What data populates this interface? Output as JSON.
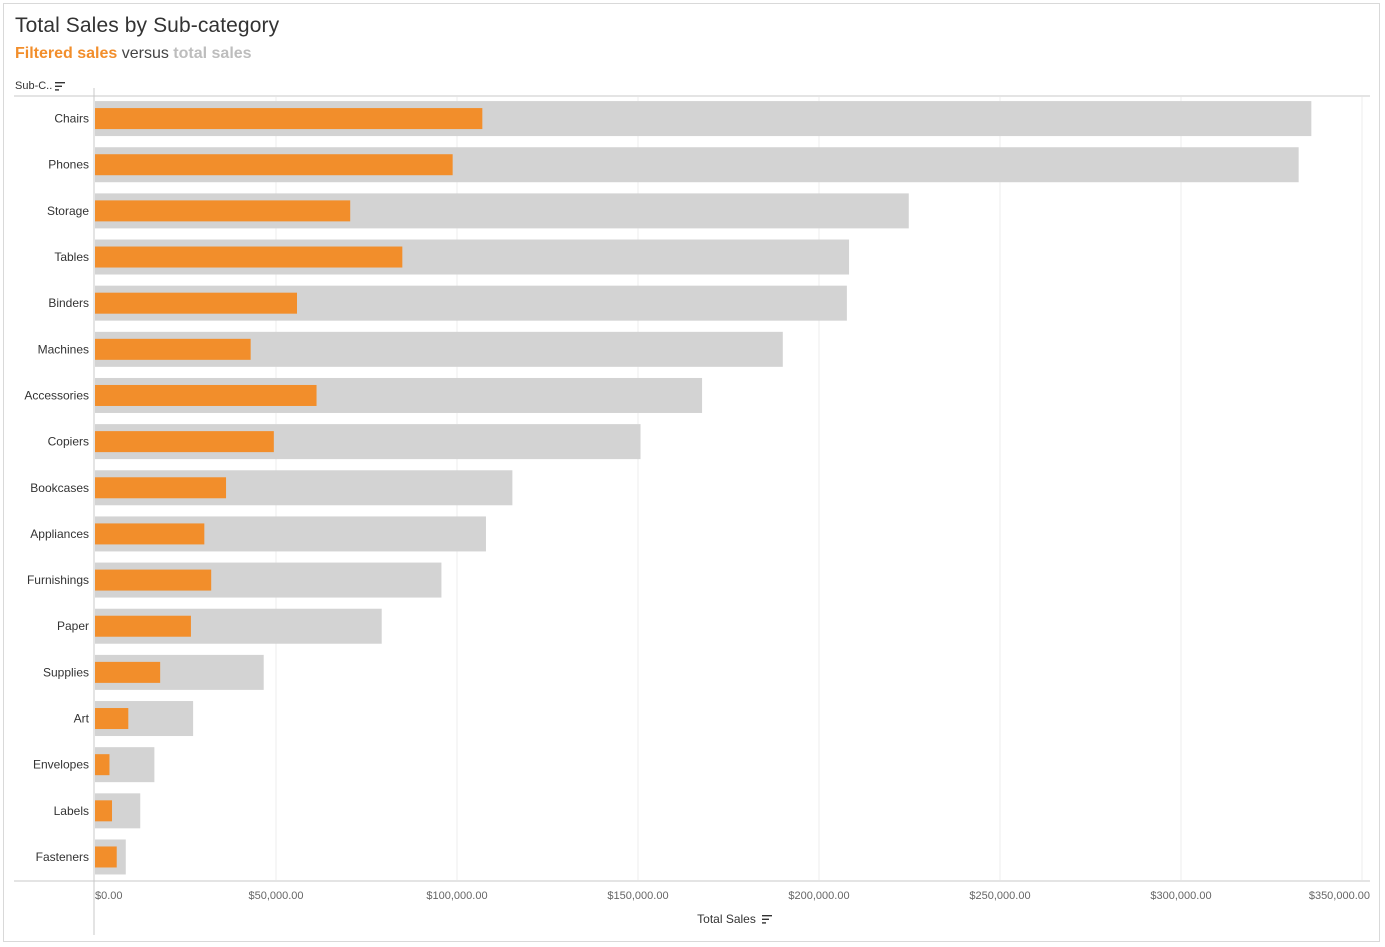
{
  "title": "Total Sales by Sub-category",
  "subtitle": {
    "filtered": "Filtered sales",
    "versus": " versus ",
    "total": "total sales"
  },
  "row_header": "Sub-C..",
  "colors": {
    "filtered": "#f28e2b",
    "total": "#d3d3d3",
    "grid": "#ececec",
    "axis": "#c8c8c8"
  },
  "chart_data": {
    "type": "bar",
    "orientation": "horizontal",
    "title": "Total Sales by Sub-category",
    "xlabel": "Total Sales",
    "ylabel": "Sub-C..",
    "xlim": [
      0,
      350000
    ],
    "xticks": [
      0,
      50000,
      100000,
      150000,
      200000,
      250000,
      300000,
      350000
    ],
    "xtick_labels": [
      "$0.00",
      "$50,000.00",
      "$100,000.00",
      "$150,000.00",
      "$200,000.00",
      "$250,000.00",
      "$300,000.00",
      "$350,000.00"
    ],
    "categories": [
      "Chairs",
      "Phones",
      "Storage",
      "Tables",
      "Binders",
      "Machines",
      "Accessories",
      "Copiers",
      "Bookcases",
      "Appliances",
      "Furnishings",
      "Paper",
      "Supplies",
      "Art",
      "Envelopes",
      "Labels",
      "Fasteners"
    ],
    "series": [
      {
        "name": "Total sales",
        "values": [
          336000,
          332500,
          224800,
          208300,
          207700,
          190000,
          167700,
          150700,
          115300,
          108000,
          95700,
          79200,
          46600,
          27100,
          16400,
          12500,
          8500
        ]
      },
      {
        "name": "Filtered sales",
        "values": [
          107000,
          98800,
          70500,
          84900,
          55800,
          43000,
          61200,
          49400,
          36200,
          30200,
          32100,
          26500,
          18000,
          9200,
          4000,
          4700,
          6000
        ]
      }
    ],
    "grid": true
  }
}
